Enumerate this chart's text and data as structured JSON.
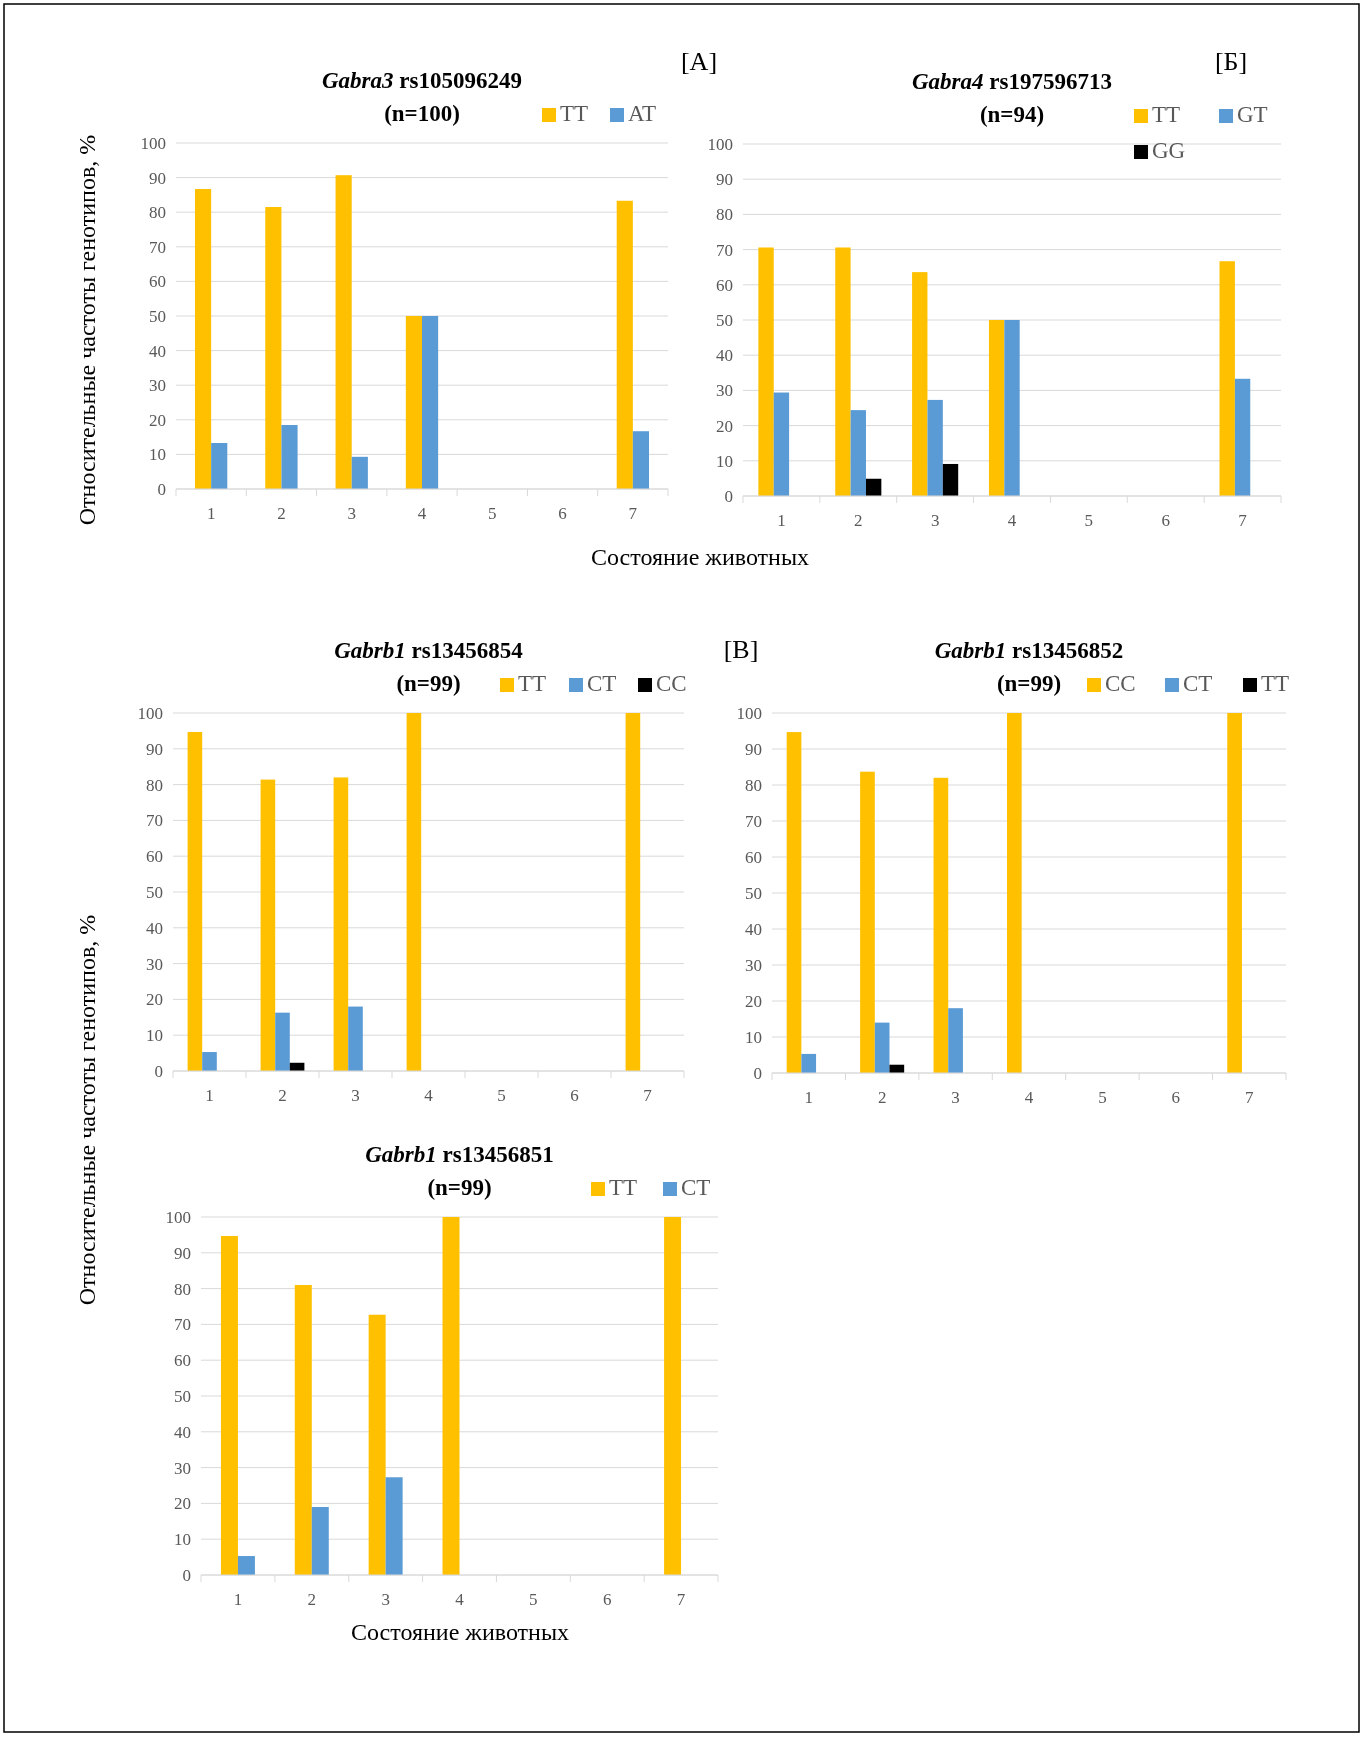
{
  "chart_data": [
    {
      "type": "bar",
      "title": "Gabra3 rs105096249",
      "subtitle": "(n=100)",
      "ylabel": "Относительные частоты генотипов, %",
      "xlabel": "Состояние животных",
      "annotations": [
        "[А]"
      ],
      "categories": [
        "1",
        "2",
        "3",
        "4",
        "5",
        "6",
        "7"
      ],
      "ylim": [
        0,
        100
      ],
      "yticks": [
        0,
        10,
        20,
        30,
        40,
        50,
        60,
        70,
        80,
        90,
        100
      ],
      "grid": "y",
      "legend": "top right",
      "series": [
        {
          "name": "TT",
          "color": "#ffc000",
          "values": [
            86.7,
            81.5,
            90.7,
            50,
            null,
            null,
            83.3
          ]
        },
        {
          "name": "AT",
          "color": "#5b9bd5",
          "values": [
            13.3,
            18.5,
            9.3,
            50,
            null,
            null,
            16.7
          ]
        }
      ]
    },
    {
      "type": "bar",
      "title": "Gabra4 rs197596713",
      "subtitle": "(n=94)",
      "annotations": [
        "[Б]"
      ],
      "categories": [
        "1",
        "2",
        "3",
        "4",
        "5",
        "6",
        "7"
      ],
      "ylim": [
        0,
        100
      ],
      "yticks": [
        0,
        10,
        20,
        30,
        40,
        50,
        60,
        70,
        80,
        90,
        100
      ],
      "grid": "y",
      "legend": "top right",
      "series": [
        {
          "name": "TT",
          "color": "#ffc000",
          "values": [
            70.6,
            70.6,
            63.6,
            50,
            null,
            null,
            66.7
          ]
        },
        {
          "name": "GT",
          "color": "#5b9bd5",
          "values": [
            29.4,
            24.4,
            27.3,
            50,
            null,
            null,
            33.3
          ]
        },
        {
          "name": "GG",
          "color": "#000000",
          "values": [
            0,
            4.9,
            9.1,
            0,
            null,
            null,
            0
          ]
        }
      ]
    },
    {
      "type": "bar",
      "title": "Gabrb1 rs13456854",
      "subtitle": "(n=99)",
      "ylabel": "Относительные частоты генотипов, %",
      "annotations": [
        "[В]"
      ],
      "categories": [
        "1",
        "2",
        "3",
        "4",
        "5",
        "6",
        "7"
      ],
      "ylim": [
        0,
        100
      ],
      "yticks": [
        0,
        10,
        20,
        30,
        40,
        50,
        60,
        70,
        80,
        90,
        100
      ],
      "grid": "y",
      "legend": "top right",
      "series": [
        {
          "name": "TT",
          "color": "#ffc000",
          "values": [
            94.7,
            81.4,
            82,
            100,
            null,
            null,
            100
          ]
        },
        {
          "name": "CT",
          "color": "#5b9bd5",
          "values": [
            5.3,
            16.3,
            18,
            0,
            null,
            null,
            0
          ]
        },
        {
          "name": "CC",
          "color": "#000000",
          "values": [
            0,
            2.3,
            0,
            0,
            null,
            null,
            0
          ]
        }
      ]
    },
    {
      "type": "bar",
      "title": "Gabrb1 rs13456852",
      "subtitle": "(n=99)",
      "categories": [
        "1",
        "2",
        "3",
        "4",
        "5",
        "6",
        "7"
      ],
      "ylim": [
        0,
        100
      ],
      "yticks": [
        0,
        10,
        20,
        30,
        40,
        50,
        60,
        70,
        80,
        90,
        100
      ],
      "grid": "y",
      "legend": "top right",
      "series": [
        {
          "name": "CC",
          "color": "#ffc000",
          "values": [
            94.7,
            83.7,
            82,
            100,
            null,
            null,
            100
          ]
        },
        {
          "name": "CT",
          "color": "#5b9bd5",
          "values": [
            5.3,
            14,
            18,
            0,
            null,
            null,
            0
          ]
        },
        {
          "name": "TT",
          "color": "#000000",
          "values": [
            0,
            2.3,
            0,
            0,
            null,
            null,
            0
          ]
        }
      ]
    },
    {
      "type": "bar",
      "title": "Gabrb1 rs13456851",
      "subtitle": "(n=99)",
      "xlabel": "Состояние животных",
      "categories": [
        "1",
        "2",
        "3",
        "4",
        "5",
        "6",
        "7"
      ],
      "ylim": [
        0,
        100
      ],
      "yticks": [
        0,
        10,
        20,
        30,
        40,
        50,
        60,
        70,
        80,
        90,
        100
      ],
      "grid": "y",
      "legend": "top right",
      "series": [
        {
          "name": "TT",
          "color": "#ffc000",
          "values": [
            94.7,
            81,
            72.7,
            100,
            null,
            null,
            100
          ]
        },
        {
          "name": "CT",
          "color": "#5b9bd5",
          "values": [
            5.3,
            19,
            27.3,
            0,
            null,
            null,
            0
          ]
        }
      ]
    }
  ]
}
